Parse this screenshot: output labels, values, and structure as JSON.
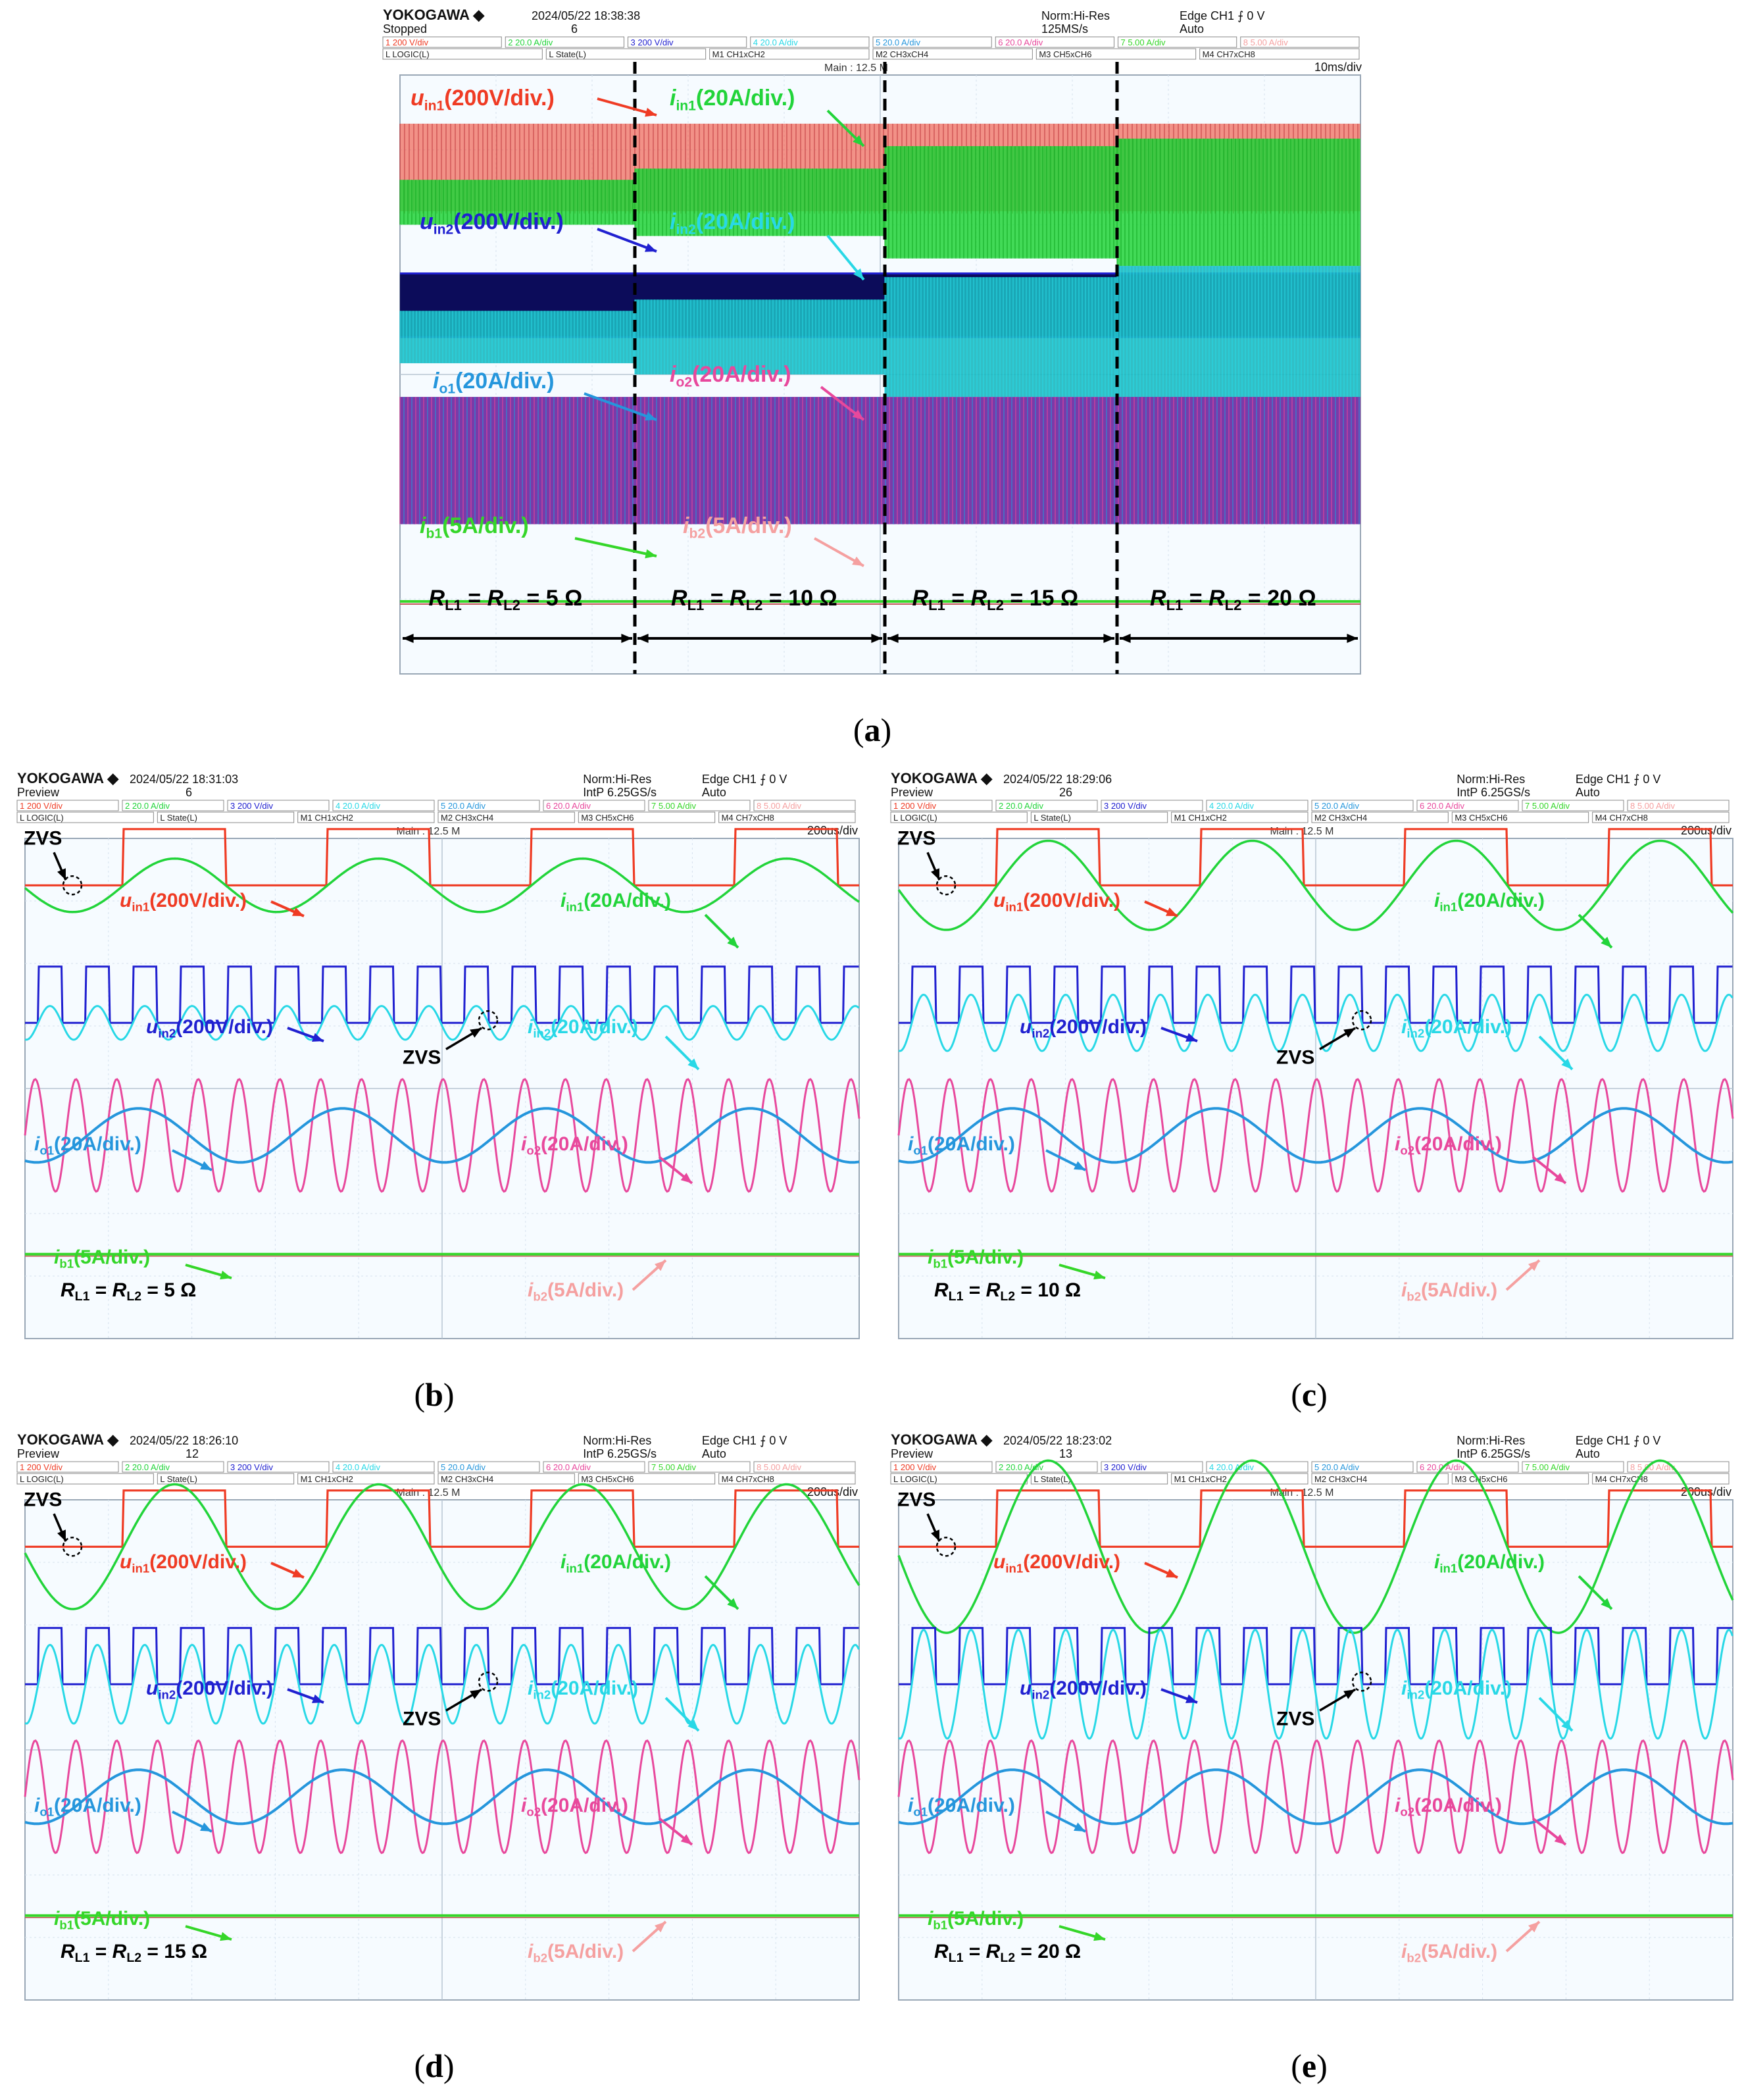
{
  "captions": [
    "(a)",
    "(b)",
    "(c)",
    "(d)",
    "(e)"
  ],
  "colors": {
    "uin1": "#ef3b24",
    "iin1": "#22d43a",
    "uin2": "#2020d0",
    "iin2": "#28d8e6",
    "io1": "#2596dc",
    "io2": "#e8489c",
    "ib1": "#35d629",
    "ib2": "#f5a0a0",
    "grid_bg": "#f6fbff",
    "grid_line": "#d6e2ee"
  },
  "labels": {
    "uin1": {
      "main": "u",
      "sub": "in1",
      "scale": "(200V/div.)"
    },
    "iin1": {
      "main": "i",
      "sub": "in1",
      "scale": "(20A/div.)"
    },
    "uin2": {
      "main": "u",
      "sub": "in2",
      "scale": "(200V/div.)"
    },
    "iin2": {
      "main": "i",
      "sub": "in2",
      "scale": "(20A/div.)"
    },
    "io1": {
      "main": "i",
      "sub": "o1",
      "scale": "(20A/div.)"
    },
    "io2": {
      "main": "i",
      "sub": "o2",
      "scale": "(20A/div.)"
    },
    "ib1": {
      "main": "i",
      "sub": "b1",
      "scale": "(5A/div.)"
    },
    "ib2": {
      "main": "i",
      "sub": "b2",
      "scale": "(5A/div.)"
    },
    "zvs": "ZVS"
  },
  "chart_data": [
    {
      "panel": "a",
      "type": "line",
      "header": {
        "brand": "YOKOGAWA",
        "datetime": "2024/05/22 18:38:38",
        "status": "Stopped",
        "count": "6",
        "mode": "Norm:Hi-Res",
        "rate": "125MS/s",
        "trigger": "Edge CH1 ⨍ 0 V",
        "trig_mode": "Auto",
        "row1": [
          "1 200 V/div",
          "2 20.0 A/div",
          "3 200 V/div",
          "4 20.0 A/div",
          "5 20.0 A/div",
          "6 20.0 A/div",
          "7 5.00 A/div",
          "8 5.00 A/div"
        ],
        "row2": [
          "L LOGIC(L)",
          "L State(L)",
          "M1 CH1xCH2",
          "M2 CH3xCH4",
          "M3 CH5xCH6",
          "M4 CH7xCH8"
        ],
        "main": "Main : 12.5 M",
        "timebase": "10ms/div"
      },
      "regions": [
        "R_L1 = R_L2 = 5 Ω",
        "R_L1 = R_L2 = 10 Ω",
        "R_L1 = R_L2 = 15 Ω",
        "R_L1 = R_L2 = 20 Ω"
      ],
      "region_math": [
        {
          "a": "R",
          "as": "L1",
          "b": "R",
          "bs": "L2",
          "val": "5 Ω"
        },
        {
          "a": "R",
          "as": "L1",
          "b": "R",
          "bs": "L2",
          "val": "10 Ω"
        },
        {
          "a": "R",
          "as": "L1",
          "b": "R",
          "bs": "L2",
          "val": "15 Ω"
        },
        {
          "a": "R",
          "as": "L1",
          "b": "R",
          "bs": "L2",
          "val": "20 Ω"
        }
      ],
      "envelope_amplitude_div": {
        "uin1": 0.9,
        "iin1": [
          0.3,
          0.45,
          0.75,
          0.85
        ],
        "uin2": 0.9,
        "iin2": [
          0.35,
          0.5,
          0.8,
          0.95
        ],
        "io1_io2": 0.85,
        "ib1_ib2": 0.05
      }
    },
    {
      "panel": "b",
      "type": "line",
      "header": {
        "brand": "YOKOGAWA",
        "datetime": "2024/05/22 18:31:03",
        "status": "Preview",
        "count": "6",
        "mode": "Norm:Hi-Res",
        "rate": "IntP 6.25GS/s",
        "trigger": "Edge CH1 ⨍ 0 V",
        "trig_mode": "Auto",
        "main": "Main : 12.5 M",
        "timebase": "200us/div"
      },
      "load": {
        "a": "R",
        "as": "L1",
        "b": "R",
        "bs": "L2",
        "val": "5 Ω"
      },
      "load_text": "R_L1 = R_L2 = 5 Ω",
      "iin1_amp_div": 0.45,
      "iin2_amp_div": 0.45,
      "io1_amp_div": 0.9,
      "io2_amp_div": 0.9
    },
    {
      "panel": "c",
      "type": "line",
      "header": {
        "brand": "YOKOGAWA",
        "datetime": "2024/05/22 18:29:06",
        "status": "Preview",
        "count": "26",
        "mode": "Norm:Hi-Res",
        "rate": "IntP 6.25GS/s",
        "trigger": "Edge CH1 ⨍ 0 V",
        "trig_mode": "Auto",
        "main": "Main : 12.5 M",
        "timebase": "200us/div"
      },
      "load": {
        "a": "R",
        "as": "L1",
        "b": "R",
        "bs": "L2",
        "val": "10 Ω"
      },
      "load_text": "R_L1 = R_L2 = 10 Ω",
      "iin1_amp_div": 0.75,
      "iin2_amp_div": 0.75,
      "io1_amp_div": 0.9,
      "io2_amp_div": 0.9
    },
    {
      "panel": "d",
      "type": "line",
      "header": {
        "brand": "YOKOGAWA",
        "datetime": "2024/05/22 18:26:10",
        "status": "Preview",
        "count": "12",
        "mode": "Norm:Hi-Res",
        "rate": "IntP 6.25GS/s",
        "trigger": "Edge CH1 ⨍ 0 V",
        "trig_mode": "Auto",
        "main": "Main : 12.5 M",
        "timebase": "200us/div"
      },
      "load": {
        "a": "R",
        "as": "L1",
        "b": "R",
        "bs": "L2",
        "val": "15 Ω"
      },
      "load_text": "R_L1 = R_L2 = 15 Ω",
      "iin1_amp_div": 1.05,
      "iin2_amp_div": 1.05,
      "io1_amp_div": 0.9,
      "io2_amp_div": 0.9
    },
    {
      "panel": "e",
      "type": "line",
      "header": {
        "brand": "YOKOGAWA",
        "datetime": "2024/05/22 18:23:02",
        "status": "Preview",
        "count": "13",
        "mode": "Norm:Hi-Res",
        "rate": "IntP 6.25GS/s",
        "trigger": "Edge CH1 ⨍ 0 V",
        "trig_mode": "Auto",
        "main": "Main : 12.5 M",
        "timebase": "200us/div"
      },
      "load": {
        "a": "R",
        "as": "L1",
        "b": "R",
        "bs": "L2",
        "val": "20 Ω"
      },
      "load_text": "R_L1 = R_L2 = 20 Ω",
      "iin1_amp_div": 1.45,
      "iin2_amp_div": 1.45,
      "io1_amp_div": 0.9,
      "io2_amp_div": 0.9
    }
  ]
}
